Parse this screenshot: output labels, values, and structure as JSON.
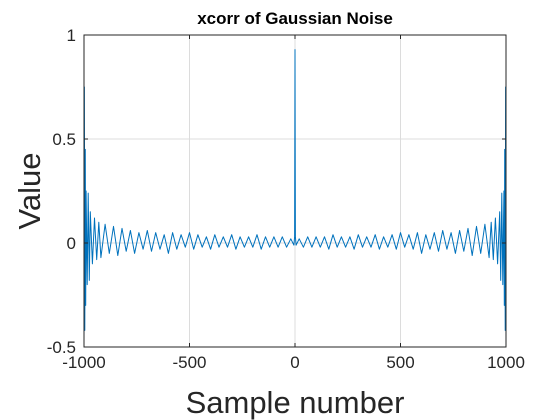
{
  "chart_data": {
    "type": "line",
    "title": "xcorr of Gaussian Noise",
    "xlabel": "Sample number",
    "ylabel": "Value",
    "xlim": [
      -1000,
      1000
    ],
    "ylim": [
      -0.5,
      1
    ],
    "xticks": [
      -1000,
      -500,
      0,
      500,
      1000
    ],
    "xtick_labels": [
      "-1000",
      "-500",
      "0",
      "500",
      "1000"
    ],
    "yticks": [
      -0.5,
      0,
      0.5,
      1
    ],
    "ytick_labels": [
      "-0.5",
      "0",
      "0.5",
      "1"
    ],
    "grid": true,
    "legend": "none",
    "line_color": "#0072bd",
    "series": [
      {
        "x": [
          -1000,
          -998,
          -996,
          -994,
          -992,
          -990,
          -985,
          -980,
          -975,
          -970,
          -960,
          -950,
          -940,
          -930,
          -920,
          -900,
          -880,
          -860,
          -840,
          -820,
          -800,
          -780,
          -760,
          -740,
          -720,
          -700,
          -680,
          -660,
          -640,
          -620,
          -600,
          -580,
          -560,
          -540,
          -520,
          -500,
          -480,
          -460,
          -440,
          -420,
          -400,
          -380,
          -360,
          -340,
          -320,
          -300,
          -280,
          -260,
          -240,
          -220,
          -200,
          -180,
          -160,
          -140,
          -120,
          -100,
          -80,
          -60,
          -40,
          -20,
          -5,
          -2,
          0,
          2,
          5,
          20,
          40,
          60,
          80,
          100,
          120,
          140,
          160,
          180,
          200,
          220,
          240,
          260,
          280,
          300,
          320,
          340,
          360,
          380,
          400,
          420,
          440,
          460,
          480,
          500,
          520,
          540,
          560,
          580,
          600,
          620,
          640,
          660,
          680,
          700,
          720,
          740,
          760,
          780,
          800,
          820,
          840,
          860,
          880,
          900,
          920,
          930,
          940,
          950,
          960,
          970,
          975,
          980,
          985,
          990,
          992,
          994,
          996,
          998,
          1000
        ],
        "y": [
          -0.5,
          0.75,
          -0.42,
          0.45,
          -0.3,
          0.25,
          -0.2,
          0.24,
          -0.18,
          0.15,
          -0.1,
          0.12,
          -0.08,
          0.1,
          -0.07,
          0.09,
          -0.05,
          0.08,
          -0.06,
          0.07,
          -0.04,
          0.06,
          -0.05,
          0.05,
          -0.03,
          0.06,
          -0.04,
          0.05,
          -0.03,
          0.04,
          -0.05,
          0.05,
          -0.03,
          0.04,
          -0.02,
          0.05,
          -0.03,
          0.04,
          -0.02,
          0.03,
          -0.03,
          0.04,
          -0.02,
          0.03,
          -0.02,
          0.04,
          -0.03,
          0.03,
          -0.02,
          0.03,
          -0.02,
          0.04,
          -0.03,
          0.03,
          -0.02,
          0.03,
          -0.02,
          0.03,
          -0.02,
          0.02,
          -0.01,
          0.03,
          0.93,
          0.03,
          -0.01,
          0.02,
          -0.02,
          0.03,
          -0.02,
          0.03,
          -0.02,
          0.03,
          -0.03,
          0.04,
          -0.02,
          0.03,
          -0.02,
          0.03,
          -0.03,
          0.04,
          -0.02,
          0.03,
          -0.02,
          0.04,
          -0.03,
          0.03,
          -0.02,
          0.04,
          -0.03,
          0.05,
          -0.02,
          0.04,
          -0.03,
          0.05,
          -0.05,
          0.04,
          -0.03,
          0.05,
          -0.04,
          0.06,
          -0.03,
          0.05,
          -0.05,
          0.06,
          -0.04,
          0.07,
          -0.06,
          0.08,
          -0.05,
          0.09,
          -0.07,
          0.1,
          -0.08,
          0.12,
          -0.1,
          0.15,
          -0.18,
          0.24,
          -0.2,
          0.25,
          -0.3,
          0.45,
          -0.42,
          0.75,
          -0.5
        ]
      }
    ]
  }
}
